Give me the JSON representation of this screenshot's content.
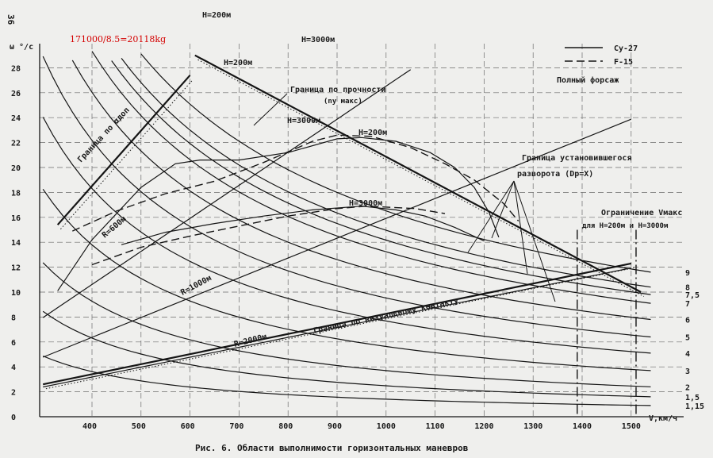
{
  "page_number": "36",
  "handwritten_note": "171000/8.5=20118kg",
  "caption": "Рис. 6. Области выполнимости  горизонтальных маневров",
  "chart_data": {
    "type": "line",
    "xlabel": "V,км/ч",
    "ylabel": "ω °/c",
    "xlim": [
      300,
      1560
    ],
    "ylim": [
      0,
      29
    ],
    "x_ticks": [
      "400",
      "500",
      "600",
      "700",
      "800",
      "900",
      "1000",
      "1100",
      "1200",
      "1300",
      "1400",
      "1500"
    ],
    "x_tick_values": [
      400,
      500,
      600,
      700,
      800,
      900,
      1000,
      1100,
      1200,
      1300,
      1400,
      1500
    ],
    "y_ticks": [
      "0",
      "2",
      "4",
      "6",
      "8",
      "10",
      "12",
      "14",
      "16",
      "18",
      "20",
      "22",
      "24",
      "26",
      "28"
    ],
    "y_tick_values": [
      0,
      2,
      4,
      6,
      8,
      10,
      12,
      14,
      16,
      18,
      20,
      22,
      24,
      26,
      28
    ],
    "grid": true,
    "legend": {
      "position": "top-right",
      "entries": [
        {
          "label": "Cy-27",
          "style": "solid"
        },
        {
          "label": "F-15",
          "style": "dashed"
        }
      ],
      "subtitle": "Полный форсаж"
    },
    "overload_labels": [
      {
        "text": "9",
        "omega": 11.6
      },
      {
        "text": "8",
        "omega": 10.4
      },
      {
        "text": "7,5",
        "omega": 9.8
      },
      {
        "text": "7",
        "omega": 9.1
      },
      {
        "text": "6",
        "omega": 7.8
      },
      {
        "text": "5",
        "omega": 6.4
      },
      {
        "text": "4",
        "omega": 5.1
      },
      {
        "text": "3",
        "omega": 3.7
      },
      {
        "text": "2",
        "omega": 2.4
      },
      {
        "text": "1,5",
        "omega": 1.6
      },
      {
        "text": "1,15",
        "omega": 0.9
      }
    ],
    "radius_lines": [
      {
        "label": "R=600м",
        "radius_m": 600
      },
      {
        "label": "R=1000м",
        "radius_m": 1000
      },
      {
        "label": "R=2000м",
        "radius_m": 2000
      }
    ],
    "speed_limit": {
      "title": "Ограничение Vмакс",
      "subtitle": "для Н=200м и Н=3000м",
      "values": [
        1390,
        1510
      ]
    },
    "boundaries": [
      {
        "label": "Граница по αдоп",
        "points": [
          [
            330,
            15.4
          ],
          [
            600,
            27.4
          ]
        ]
      },
      {
        "label": "Граница по визуальному контакту",
        "points": [
          [
            300,
            2.6
          ],
          [
            1500,
            12.3
          ]
        ]
      },
      {
        "label": "Граница по прочности (nу макс)",
        "points": [
          [
            610,
            29
          ],
          [
            1520,
            10
          ]
        ]
      }
    ],
    "turn_limits": [
      {
        "label": "Н=200м",
        "series": "Cy-27",
        "style": "solid",
        "points": [
          [
            330,
            10.1
          ],
          [
            400,
            14.2
          ],
          [
            500,
            18.4
          ],
          [
            570,
            20.3
          ],
          [
            620,
            20.6
          ],
          [
            700,
            20.6
          ],
          [
            800,
            21.2
          ],
          [
            900,
            22.3
          ],
          [
            950,
            22.4
          ],
          [
            1020,
            22.1
          ],
          [
            1090,
            21.2
          ],
          [
            1140,
            20
          ],
          [
            1180,
            18.4
          ],
          [
            1210,
            16.4
          ],
          [
            1230,
            14.4
          ]
        ]
      },
      {
        "label": "Н=200м",
        "series": "F-15",
        "style": "dashed",
        "points": [
          [
            360,
            14.9
          ],
          [
            450,
            16.5
          ],
          [
            550,
            17.9
          ],
          [
            650,
            18.9
          ],
          [
            750,
            20.4
          ],
          [
            850,
            22.1
          ],
          [
            900,
            22.6
          ],
          [
            970,
            22.5
          ],
          [
            1050,
            21.6
          ],
          [
            1120,
            20.3
          ],
          [
            1180,
            19
          ],
          [
            1240,
            17.1
          ],
          [
            1270,
            15.7
          ]
        ]
      },
      {
        "label": "Н=3000м",
        "series": "Cy-27",
        "style": "solid",
        "points": [
          [
            460,
            13.8
          ],
          [
            550,
            14.8
          ],
          [
            650,
            15.5
          ],
          [
            750,
            16.1
          ],
          [
            850,
            16.6
          ],
          [
            950,
            16.9
          ],
          [
            1020,
            16.6
          ],
          [
            1080,
            16.1
          ],
          [
            1140,
            15.2
          ],
          [
            1200,
            14.1
          ]
        ]
      },
      {
        "label": "Н=3000м",
        "series": "F-15",
        "style": "dashed",
        "points": [
          [
            400,
            12.2
          ],
          [
            500,
            13.6
          ],
          [
            600,
            14.5
          ],
          [
            700,
            15.3
          ],
          [
            800,
            16.1
          ],
          [
            900,
            16.7
          ],
          [
            960,
            16.9
          ],
          [
            1060,
            16.7
          ],
          [
            1120,
            16.3
          ]
        ]
      }
    ],
    "labels": {
      "h200_top": "Н=200м",
      "h3000_top": "Н=3000м",
      "h200_mid": "Н=200м",
      "h3000_mid": "Н=3000м",
      "h200_peak": "Н=200м",
      "h3000_lower": "Н=3000м",
      "alpha_boundary": "Граница по αдоп",
      "strength_boundary": "Граница по прочности",
      "strength_sub": "(nу макс)",
      "turn_boundary": "Граница установившегося",
      "turn_boundary_sub": "разворота (Dр=X)",
      "visual_boundary": "Граница по визуальному контакту"
    }
  }
}
